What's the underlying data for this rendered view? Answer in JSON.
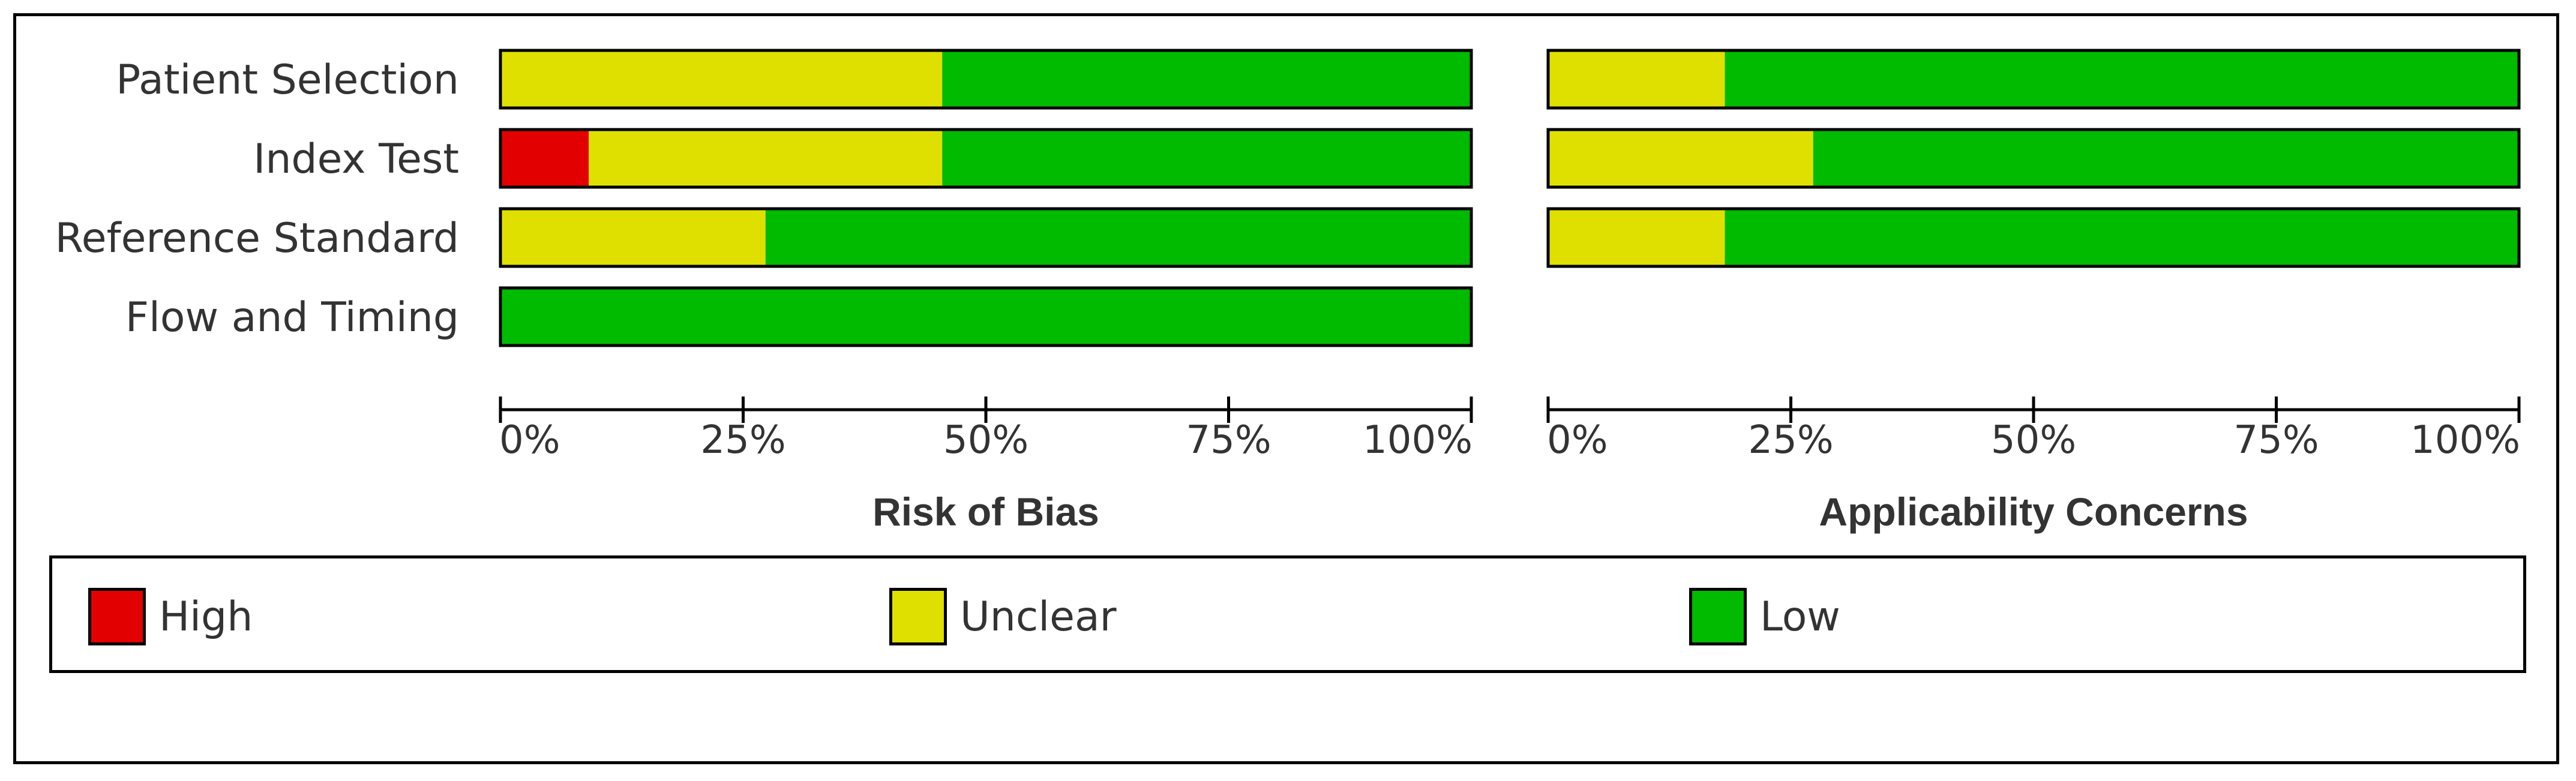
{
  "chart_data": [
    {
      "type": "stacked-bar-horizontal",
      "title": "Risk of Bias",
      "categories": [
        "Patient Selection",
        "Index Test",
        "Reference Standard",
        "Flow and Timing"
      ],
      "series": [
        {
          "name": "High",
          "values": [
            0,
            9.1,
            0,
            0
          ]
        },
        {
          "name": "Unclear",
          "values": [
            45.5,
            36.4,
            27.3,
            0
          ]
        },
        {
          "name": "Low",
          "values": [
            54.5,
            54.5,
            72.7,
            100
          ]
        }
      ],
      "xlim": [
        0,
        100
      ],
      "xticks": [
        "0%",
        "25%",
        "50%",
        "75%",
        "100%"
      ],
      "grid": false
    },
    {
      "type": "stacked-bar-horizontal",
      "title": "Applicability Concerns",
      "categories": [
        "Patient Selection",
        "Index Test",
        "Reference Standard"
      ],
      "series": [
        {
          "name": "High",
          "values": [
            0,
            0,
            0
          ]
        },
        {
          "name": "Unclear",
          "values": [
            18.2,
            27.3,
            18.2
          ]
        },
        {
          "name": "Low",
          "values": [
            81.8,
            72.7,
            81.8
          ]
        }
      ],
      "xlim": [
        0,
        100
      ],
      "xticks": [
        "0%",
        "25%",
        "50%",
        "75%",
        "100%"
      ],
      "grid": false
    }
  ],
  "legend": {
    "placement": "bottom",
    "items": [
      {
        "label": "High",
        "color": "#e30000"
      },
      {
        "label": "Unclear",
        "color": "#e0e000"
      },
      {
        "label": "Low",
        "color": "#00bb00"
      }
    ]
  }
}
